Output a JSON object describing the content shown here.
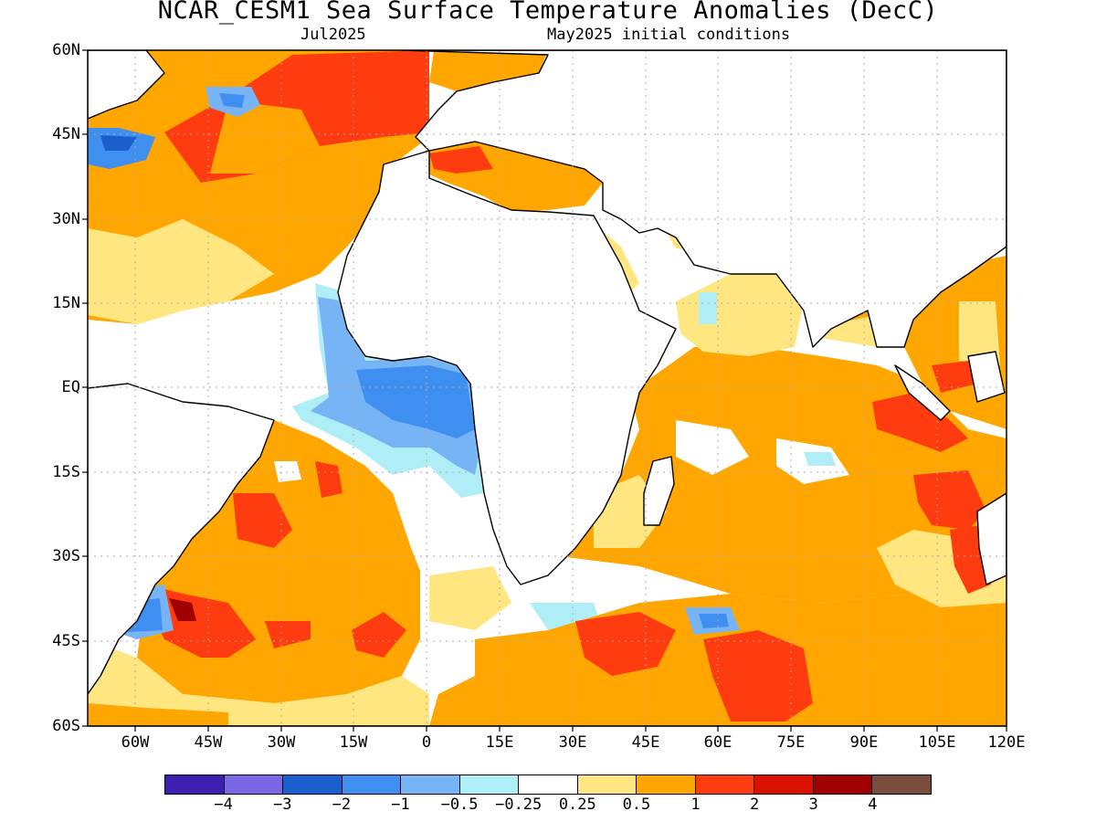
{
  "title": "NCAR_CESM1 Sea Surface Temperature Anomalies (DecC)",
  "subtitle_left": "Jul2025",
  "subtitle_right": "May2025 initial conditions",
  "lat_labels": [
    "60N",
    "45N",
    "30N",
    "15N",
    "EQ",
    "15S",
    "30S",
    "45S",
    "60S"
  ],
  "lon_labels": [
    "60W",
    "45W",
    "30W",
    "15W",
    "0",
    "15E",
    "30E",
    "45E",
    "60E",
    "75E",
    "90E",
    "105E",
    "120E"
  ],
  "colorbar": {
    "colors": [
      "#3a1fb0",
      "#7b66e6",
      "#1b5fcc",
      "#3f8ff0",
      "#77b4f5",
      "#b0eef7",
      "#ffffff",
      "#ffe680",
      "#ffa600",
      "#ff3c0f",
      "#d91200",
      "#a00000",
      "#7a4c3e"
    ],
    "labels": [
      "−4",
      "−3",
      "−2",
      "−1",
      "−0.5",
      "−0.25",
      "0.25",
      "0.5",
      "1",
      "2",
      "3",
      "4"
    ]
  },
  "legend_colors": {
    "neg_strong": "#1b5fcc",
    "neg_mid": "#3f8ff0",
    "neg_light": "#77b4f5",
    "neg_weak": "#b0eef7",
    "pos_weak": "#ffe680",
    "pos_mid": "#ffa600",
    "pos_strong": "#ff3c0f",
    "pos_very_strong": "#d91200",
    "pos_extreme": "#a00000"
  }
}
